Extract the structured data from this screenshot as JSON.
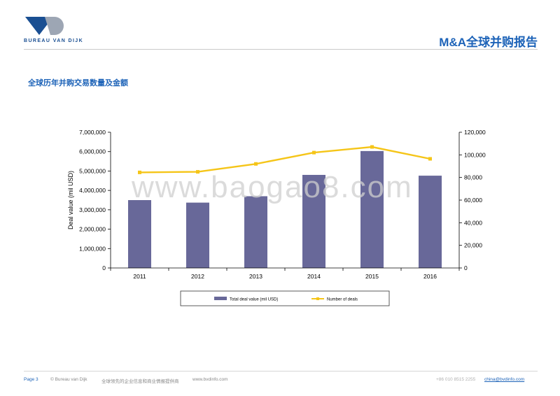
{
  "header": {
    "logo_text": "BUREAU VAN DIJK",
    "report_title": "M&A全球并购报告"
  },
  "section": {
    "title": "全球历年并购交易数量及金额"
  },
  "watermark": "www.baogao8.com",
  "colors": {
    "brand_blue": "#1d63b8",
    "bar": "#686899",
    "line": "#f5c518"
  },
  "chart_data": {
    "type": "bar",
    "title": "",
    "categories": [
      "2011",
      "2012",
      "2013",
      "2014",
      "2015",
      "2016"
    ],
    "series": [
      {
        "name": "Total deal value (mil USD)",
        "kind": "bar",
        "axis": "left",
        "values": [
          3500000,
          3370000,
          3700000,
          4800000,
          6030000,
          4760000
        ]
      },
      {
        "name": "Number of deals",
        "kind": "line",
        "axis": "right",
        "values": [
          84500,
          85000,
          92000,
          102000,
          107000,
          96500
        ]
      }
    ],
    "ylabel": "Deal value (mil USD)",
    "ylim": [
      0,
      7000000
    ],
    "y_ticks": [
      "0",
      "1,000,000",
      "2,000,000",
      "3,000,000",
      "4,000,000",
      "5,000,000",
      "6,000,000",
      "7,000,000"
    ],
    "y2lim": [
      0,
      120000
    ],
    "y2_ticks": [
      "0",
      "20,000",
      "40,000",
      "60,000",
      "80,000",
      "100,000",
      "120,000"
    ],
    "legend": [
      "Total deal value (mil USD)",
      "Number of deals"
    ],
    "legend_position": "bottom",
    "grid": false
  },
  "footer": {
    "page": "Page 3",
    "copyright": "© Bureau van Dijk",
    "tagline": "全球领先的企业信息和商业情报提供商",
    "website": "www.bvdinfo.com",
    "phone": "+86 010 8515 2255",
    "email": "china@bvdinfo.com"
  }
}
